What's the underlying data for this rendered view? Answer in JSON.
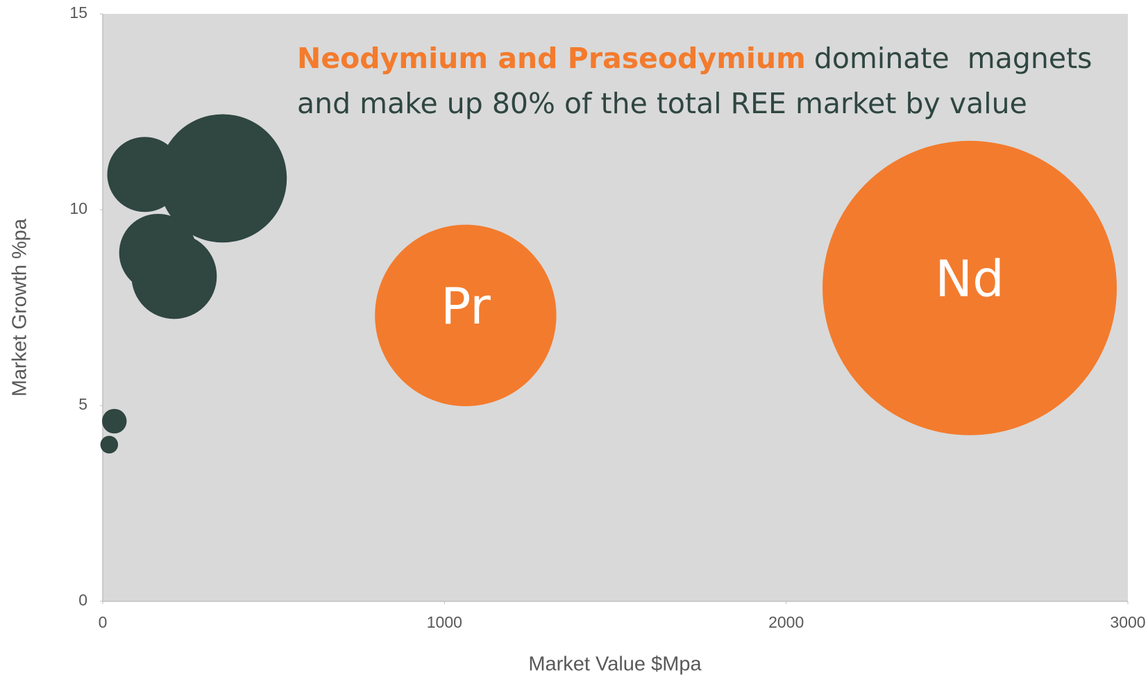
{
  "chart_data": {
    "type": "bubble",
    "xlabel": "Market Value $Mpa",
    "ylabel": "Market Growth %pa",
    "annotation": {
      "highlight": "Neodymium and Praseodymium",
      "lines": [
        "dominate  magnets",
        "and make up 80% of the total REE market by value"
      ],
      "highlight_color": "#f37b2d"
    },
    "x": [
      19,
      34,
      123,
      162,
      209,
      351,
      1062,
      2537
    ],
    "values": [
      4.0,
      4.6,
      10.9,
      8.9,
      8.3,
      10.8,
      7.3,
      8.0
    ],
    "sizes": [
      0.36,
      0.7,
      6.5,
      7,
      8.4,
      19,
      38,
      100
    ],
    "colors": [
      "#2f4641",
      "#2f4641",
      "#2f4641",
      "#2f4641",
      "#2f4641",
      "#2f4641",
      "#f37b2d",
      "#f37b2d"
    ],
    "labels": [
      null,
      null,
      null,
      null,
      null,
      null,
      "Pr",
      "Nd"
    ],
    "xlim": [
      0,
      3000
    ],
    "xticks": [
      0,
      1000,
      2000,
      3000
    ],
    "ylim": [
      0,
      15
    ],
    "yticks": [
      0,
      5,
      10,
      15
    ],
    "plot_background": "#d9d9d9"
  }
}
